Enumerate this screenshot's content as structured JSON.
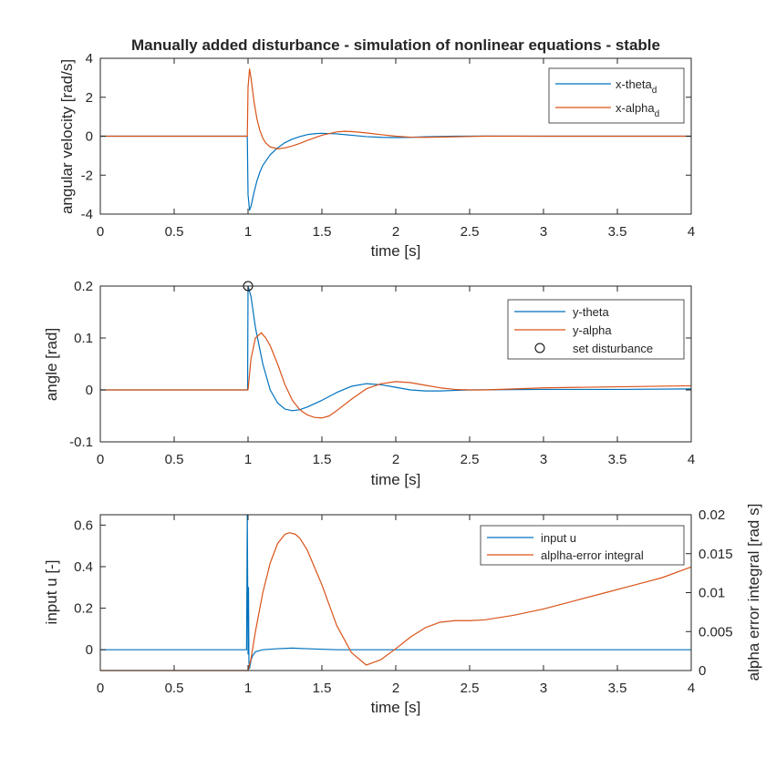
{
  "figure": {
    "title": "Manually added disturbance - simulation of nonlinear equations - stable"
  },
  "colors": {
    "blue": "#0072BD",
    "orange": "#D95319",
    "axis": "#262626"
  },
  "chart_data": [
    {
      "type": "line",
      "xlabel": "time [s]",
      "ylabel": "angular velocity [rad/s]",
      "xlim": [
        0,
        4
      ],
      "ylim": [
        -4,
        4
      ],
      "xticks": [
        0,
        0.5,
        1,
        1.5,
        2,
        2.5,
        3,
        3.5,
        4
      ],
      "xtick_labels": [
        "0",
        "0.5",
        "1",
        "1.5",
        "2",
        "2.5",
        "3",
        "3.5",
        "4"
      ],
      "yticks": [
        -4,
        -2,
        0,
        2,
        4
      ],
      "ytick_labels": [
        "-4",
        "-2",
        "0",
        "2",
        "4"
      ],
      "legend_placement": "top-right",
      "series": [
        {
          "name": "x-theta",
          "name_subscript": "d",
          "color": "#0072BD",
          "x": [
            0,
            0.995,
            1.0,
            1.01,
            1.02,
            1.04,
            1.06,
            1.08,
            1.1,
            1.15,
            1.2,
            1.25,
            1.3,
            1.35,
            1.4,
            1.45,
            1.5,
            1.6,
            1.7,
            1.8,
            1.9,
            2.0,
            2.1,
            2.2,
            2.4,
            2.6,
            3.0,
            3.5,
            4.0
          ],
          "y": [
            0,
            0,
            -3.0,
            -3.8,
            -3.6,
            -2.9,
            -2.3,
            -1.85,
            -1.5,
            -0.95,
            -0.6,
            -0.33,
            -0.15,
            -0.02,
            0.08,
            0.13,
            0.15,
            0.12,
            0.05,
            -0.02,
            -0.06,
            -0.07,
            -0.06,
            -0.03,
            0.0,
            0.01,
            0,
            0,
            0
          ]
        },
        {
          "name": "x-alpha",
          "name_subscript": "d",
          "color": "#D95319",
          "x": [
            0,
            0.995,
            1.0,
            1.01,
            1.02,
            1.04,
            1.06,
            1.08,
            1.1,
            1.12,
            1.15,
            1.2,
            1.25,
            1.3,
            1.35,
            1.4,
            1.5,
            1.6,
            1.65,
            1.7,
            1.8,
            1.9,
            2.0,
            2.1,
            2.2,
            2.4,
            2.6,
            3.0,
            3.5,
            4.0
          ],
          "y": [
            0,
            0,
            2.5,
            3.45,
            3.0,
            1.8,
            0.9,
            0.3,
            -0.1,
            -0.35,
            -0.55,
            -0.65,
            -0.6,
            -0.5,
            -0.37,
            -0.22,
            0.05,
            0.22,
            0.25,
            0.24,
            0.17,
            0.08,
            0.0,
            -0.05,
            -0.06,
            -0.03,
            0.0,
            0,
            0,
            0
          ]
        }
      ]
    },
    {
      "type": "line",
      "xlabel": "time [s]",
      "ylabel": "angle [rad]",
      "xlim": [
        0,
        4
      ],
      "ylim": [
        -0.1,
        0.2
      ],
      "xticks": [
        0,
        0.5,
        1,
        1.5,
        2,
        2.5,
        3,
        3.5,
        4
      ],
      "xtick_labels": [
        "0",
        "0.5",
        "1",
        "1.5",
        "2",
        "2.5",
        "3",
        "3.5",
        "4"
      ],
      "yticks": [
        -0.1,
        0,
        0.1,
        0.2
      ],
      "ytick_labels": [
        "-0.1",
        "0",
        "0.1",
        "0.2"
      ],
      "legend_placement": "top-right",
      "series": [
        {
          "name": "y-theta",
          "color": "#0072BD",
          "x": [
            0,
            0.997,
            1.0,
            1.02,
            1.05,
            1.1,
            1.15,
            1.2,
            1.25,
            1.3,
            1.35,
            1.4,
            1.5,
            1.6,
            1.7,
            1.8,
            1.9,
            2.0,
            2.1,
            2.2,
            2.3,
            2.4,
            2.5,
            3.0,
            3.5,
            4.0
          ],
          "y": [
            0,
            0,
            0.2,
            0.18,
            0.12,
            0.05,
            0.0,
            -0.025,
            -0.037,
            -0.04,
            -0.038,
            -0.033,
            -0.02,
            -0.005,
            0.007,
            0.012,
            0.01,
            0.005,
            0.0,
            -0.002,
            -0.002,
            -0.001,
            0.0,
            0.001,
            0.001,
            0.002
          ]
        },
        {
          "name": "y-alpha",
          "color": "#D95319",
          "x": [
            0,
            0.997,
            1.0,
            1.02,
            1.05,
            1.09,
            1.12,
            1.15,
            1.2,
            1.25,
            1.3,
            1.35,
            1.4,
            1.45,
            1.5,
            1.55,
            1.6,
            1.7,
            1.8,
            1.9,
            2.0,
            2.1,
            2.2,
            2.3,
            2.4,
            2.5,
            2.6,
            3.0,
            3.5,
            4.0
          ],
          "y": [
            0,
            0,
            0.0,
            0.06,
            0.1,
            0.11,
            0.1,
            0.085,
            0.05,
            0.01,
            -0.02,
            -0.038,
            -0.048,
            -0.053,
            -0.054,
            -0.05,
            -0.04,
            -0.018,
            0.002,
            0.012,
            0.016,
            0.014,
            0.009,
            0.004,
            0.001,
            0.0,
            0.0,
            0.004,
            0.006,
            0.008
          ]
        },
        {
          "name": "set disturbance",
          "type": "marker",
          "marker": "circle",
          "color": "#000000",
          "x": [
            1.0
          ],
          "y": [
            0.2
          ]
        }
      ]
    },
    {
      "type": "line",
      "xlabel": "time [s]",
      "ylabel": "input u [-]",
      "ylabel_right": "alpha error integral [rad s]",
      "xlim": [
        0,
        4
      ],
      "ylim": [
        -0.1,
        0.65
      ],
      "ylim_right": [
        0,
        0.02
      ],
      "xticks": [
        0,
        0.5,
        1,
        1.5,
        2,
        2.5,
        3,
        3.5,
        4
      ],
      "xtick_labels": [
        "0",
        "0.5",
        "1",
        "1.5",
        "2",
        "2.5",
        "3",
        "3.5",
        "4"
      ],
      "yticks": [
        0,
        0.2,
        0.4,
        0.6
      ],
      "ytick_labels": [
        "0",
        "0.2",
        "0.4",
        "0.6"
      ],
      "yticks_right": [
        0,
        0.005,
        0.01,
        0.015,
        0.02
      ],
      "ytick_labels_right": [
        "0",
        "0.005",
        "0.01",
        "0.015",
        "0.02"
      ],
      "legend_placement": "top-right",
      "series": [
        {
          "name": "input u",
          "color": "#0072BD",
          "axis": "left",
          "x": [
            0,
            0.99,
            0.995,
            1.0,
            1.003,
            1.006,
            1.01,
            1.02,
            1.03,
            1.05,
            1.1,
            1.2,
            1.3,
            1.4,
            1.6,
            2.0,
            3.0,
            4.0
          ],
          "y": [
            0,
            0,
            0.65,
            -0.02,
            0.3,
            -0.06,
            -0.09,
            -0.05,
            -0.03,
            -0.01,
            0.0,
            0.005,
            0.008,
            0.005,
            0.0,
            0.0,
            0.0,
            0.0
          ]
        },
        {
          "name": "alplha-error integral",
          "color": "#D95319",
          "axis": "right",
          "x": [
            0,
            1.0,
            1.02,
            1.05,
            1.1,
            1.15,
            1.2,
            1.25,
            1.28,
            1.32,
            1.35,
            1.4,
            1.5,
            1.6,
            1.7,
            1.8,
            1.9,
            2.0,
            2.1,
            2.2,
            2.3,
            2.4,
            2.5,
            2.6,
            2.8,
            3.0,
            3.2,
            3.4,
            3.6,
            3.8,
            4.0
          ],
          "y": [
            0,
            0,
            0.0015,
            0.005,
            0.01,
            0.0138,
            0.0163,
            0.0175,
            0.0177,
            0.0175,
            0.017,
            0.0155,
            0.011,
            0.0058,
            0.0023,
            0.0007,
            0.0014,
            0.0028,
            0.0043,
            0.0055,
            0.0062,
            0.0064,
            0.0064,
            0.0065,
            0.0071,
            0.0079,
            0.0089,
            0.0099,
            0.0109,
            0.0119,
            0.0133
          ]
        }
      ]
    }
  ]
}
